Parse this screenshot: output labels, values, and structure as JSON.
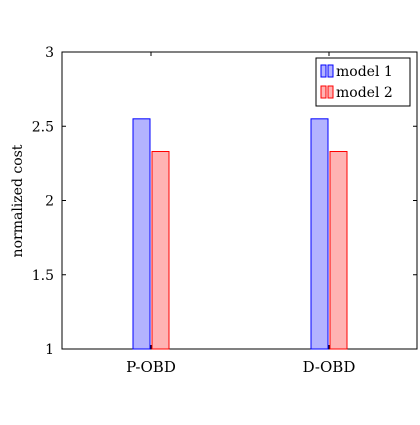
{
  "chart_data": {
    "type": "bar",
    "categories": [
      "P-OBD",
      "D-OBD"
    ],
    "series": [
      {
        "name": "model 1",
        "values": [
          2.55,
          2.55
        ],
        "fill": "#b3b3ff",
        "stroke": "#0000ff"
      },
      {
        "name": "model 2",
        "values": [
          2.33,
          2.33
        ],
        "fill": "#ffb3b3",
        "stroke": "#ff0000"
      }
    ],
    "ylabel": "normalized cost",
    "xlabel": "",
    "ylim": [
      1,
      3
    ],
    "yticks": [
      1,
      1.5,
      2,
      2.5,
      3
    ],
    "ytick_labels": [
      "1",
      "1.5",
      "2",
      "2.5",
      "3"
    ],
    "grid": false,
    "legend_position": "top-right"
  }
}
